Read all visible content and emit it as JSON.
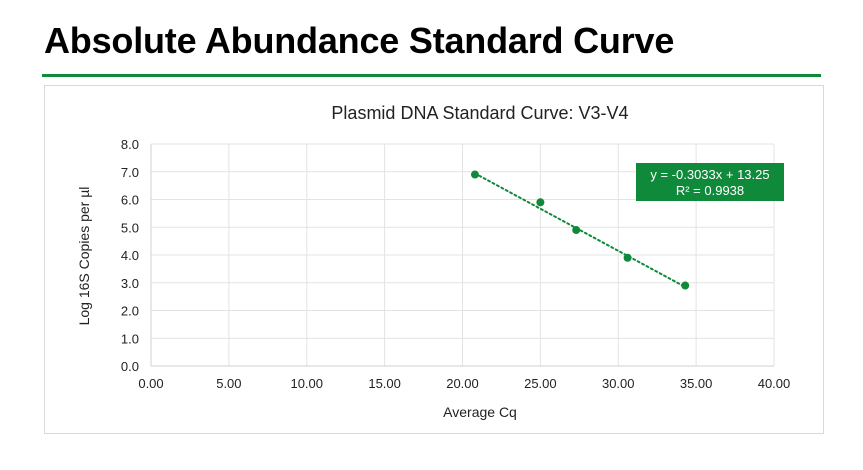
{
  "page": {
    "heading": "Absolute Abundance Standard Curve",
    "accent_color": "#0f8a3a"
  },
  "chart_data": {
    "type": "scatter",
    "title": "Plasmid DNA Standard Curve: V3-V4",
    "xlabel": "Average Cq",
    "ylabel": "Log 16S Copies per µl",
    "xlim": [
      0,
      40
    ],
    "ylim": [
      0,
      8
    ],
    "x_ticks": [
      "0.00",
      "5.00",
      "10.00",
      "15.00",
      "20.00",
      "25.00",
      "30.00",
      "35.00",
      "40.00"
    ],
    "y_ticks": [
      "0.0",
      "1.0",
      "2.0",
      "3.0",
      "4.0",
      "5.0",
      "6.0",
      "7.0",
      "8.0"
    ],
    "grid": true,
    "series": [
      {
        "points": [
          {
            "x": 20.8,
            "y": 6.9
          },
          {
            "x": 25.0,
            "y": 5.9
          },
          {
            "x": 27.3,
            "y": 4.9
          },
          {
            "x": 30.6,
            "y": 3.9
          },
          {
            "x": 34.3,
            "y": 2.9
          }
        ],
        "color": "#0f8a3a"
      }
    ],
    "trendline": {
      "style": "dotted",
      "x_range": [
        20.8,
        34.3
      ],
      "slope": -0.3033,
      "intercept": 13.25,
      "equation_label": "y = -0.3033x + 13.25",
      "r2_label": "R² = 0.9938",
      "label_bg": "#0f8a3a",
      "label_text_color": "#ffffff"
    }
  }
}
